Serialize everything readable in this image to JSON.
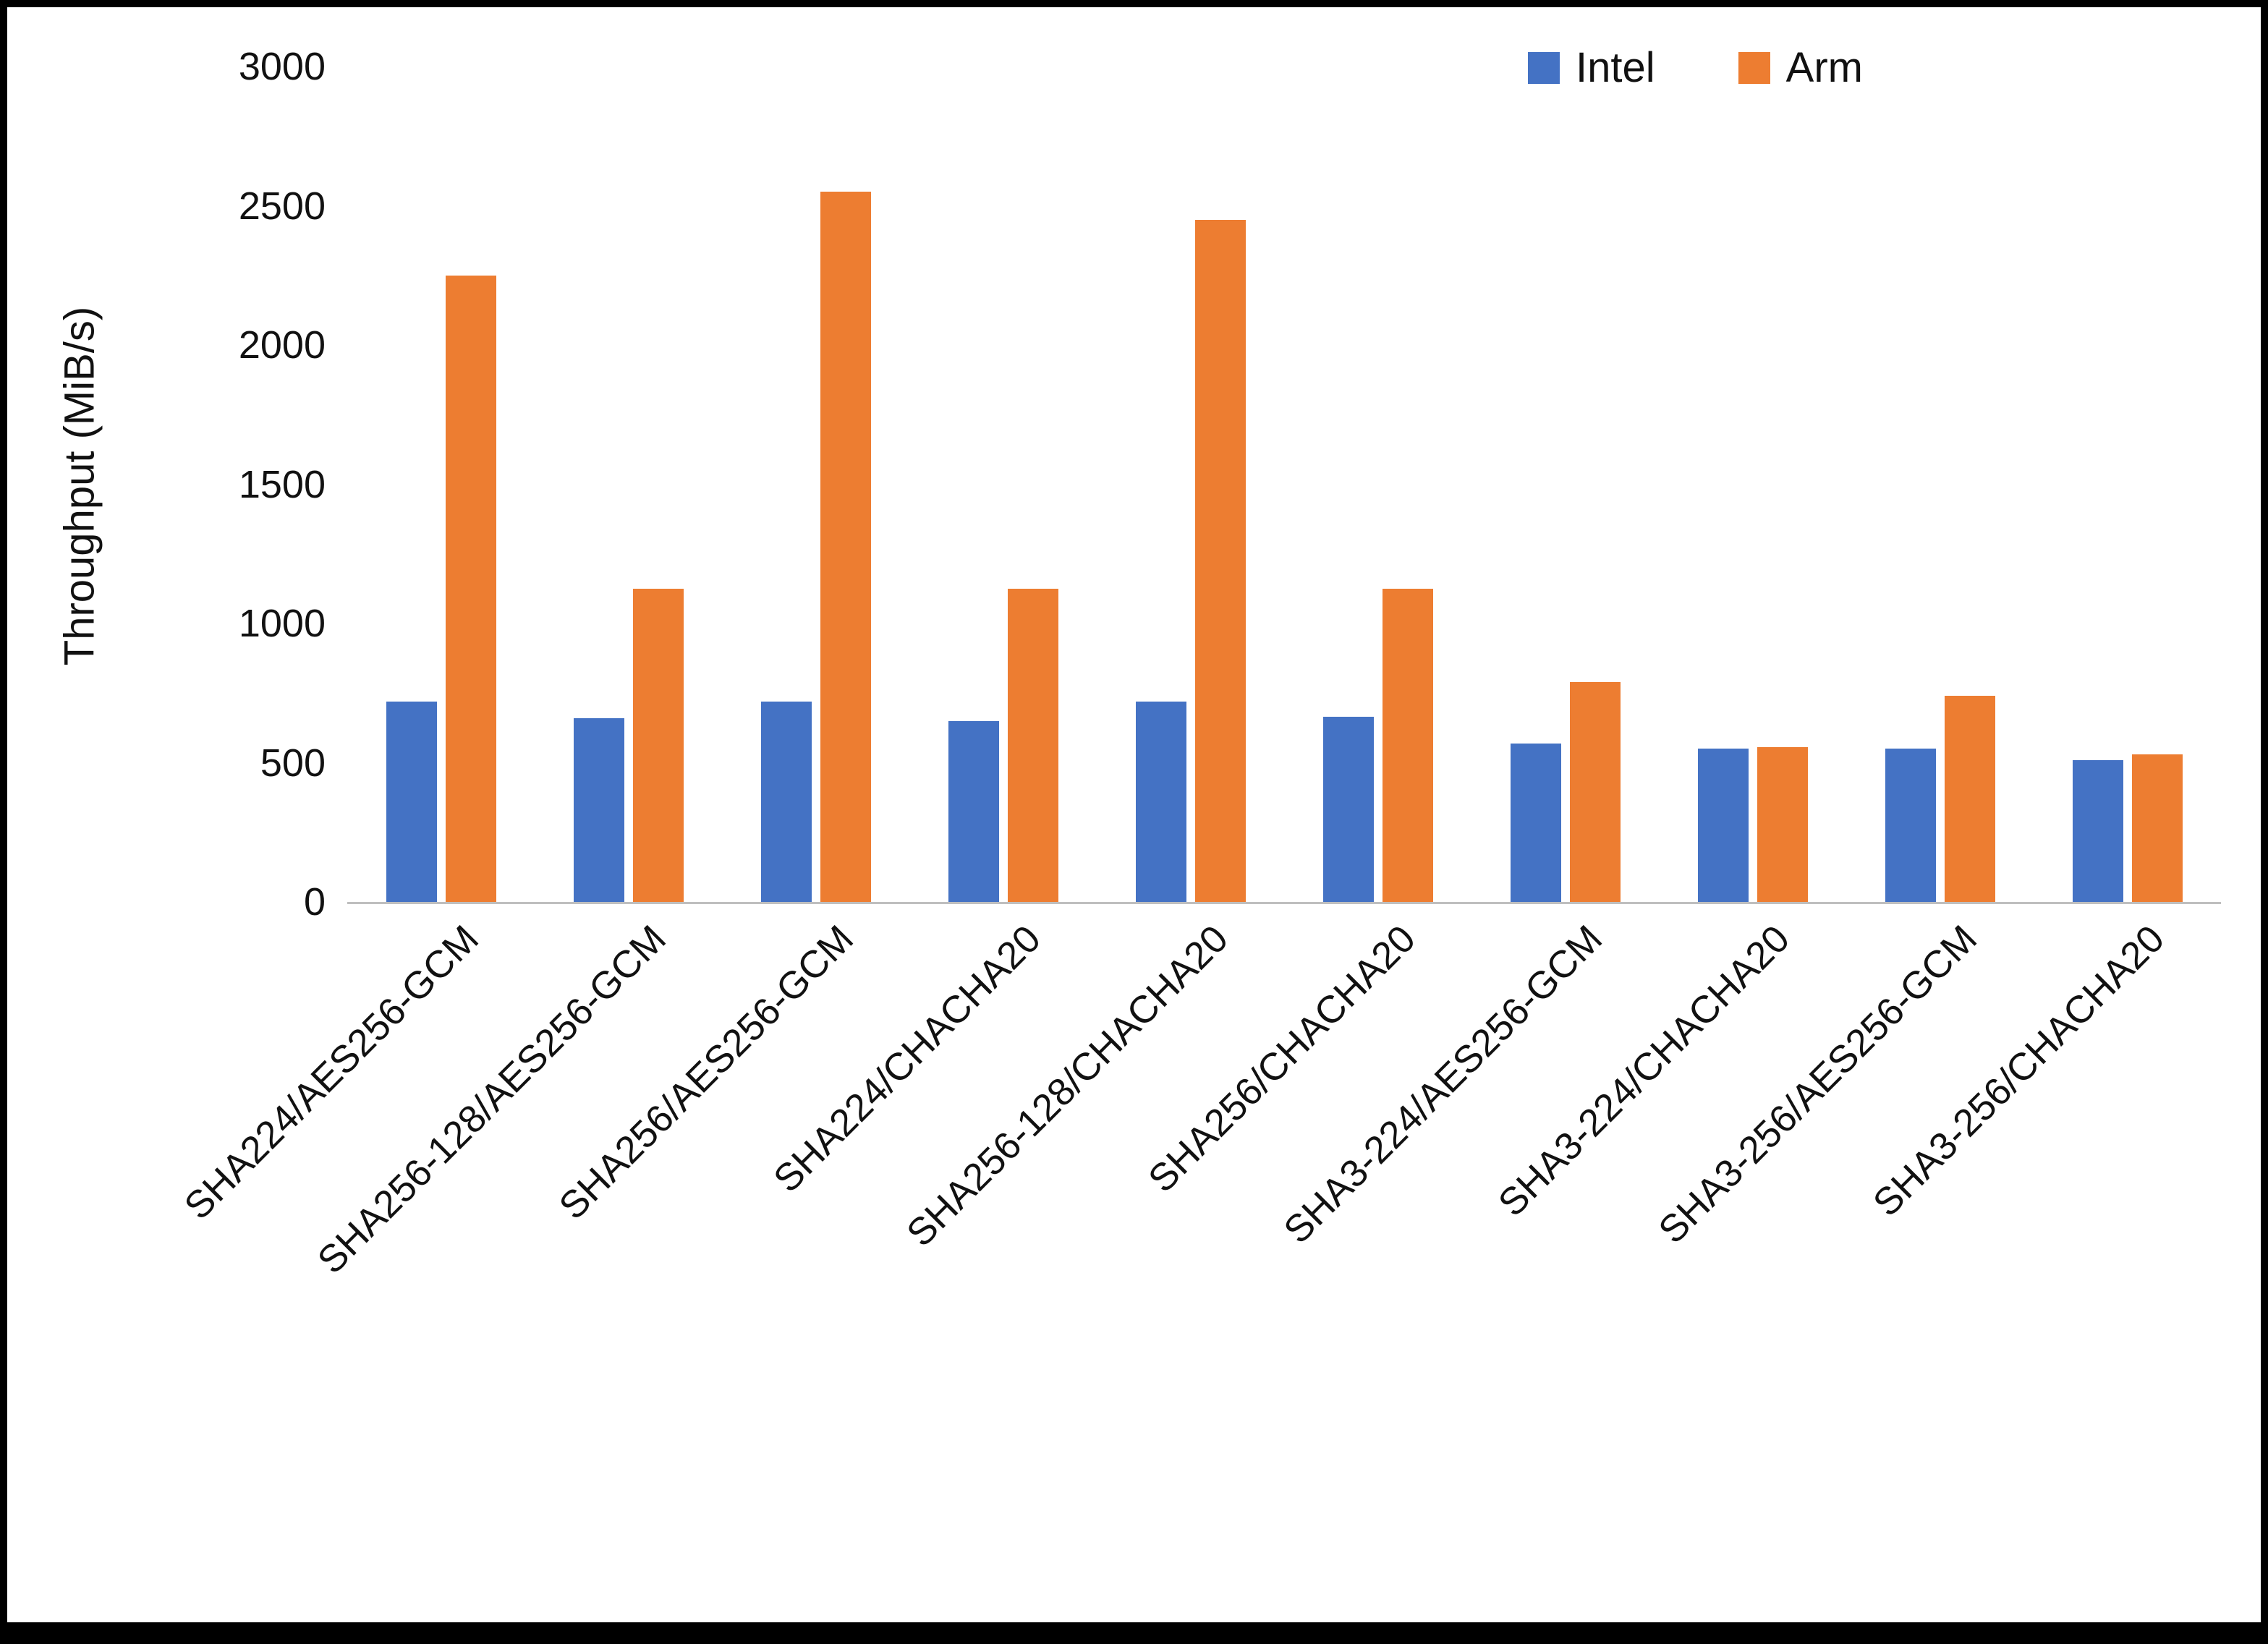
{
  "chart_data": {
    "type": "bar",
    "title": "",
    "xlabel": "",
    "ylabel": "Throughput (MiB/s)",
    "ylim": [
      0,
      3000
    ],
    "yticks": [
      0,
      500,
      1000,
      1500,
      2000,
      2500,
      3000
    ],
    "grid": false,
    "legend_position": "top-right",
    "categories": [
      "SHA224/AES256-GCM",
      "SHA256-128/AES256-GCM",
      "SHA256/AES256-GCM",
      "SHA224/CHACHA20",
      "SHA256-128/CHACHA20",
      "SHA256/CHACHA20",
      "SHA3-224/AES256-GCM",
      "SHA3-224/CHACHA20",
      "SHA3-256/AES256-GCM",
      "SHA3-256/CHACHA20"
    ],
    "series": [
      {
        "name": "Intel",
        "color": "#4472C4",
        "values": [
          720,
          660,
          720,
          650,
          720,
          665,
          570,
          550,
          550,
          510
        ]
      },
      {
        "name": "Arm",
        "color": "#ED7D31",
        "values": [
          2250,
          1125,
          2550,
          1125,
          2450,
          1125,
          790,
          555,
          740,
          530
        ]
      }
    ]
  }
}
